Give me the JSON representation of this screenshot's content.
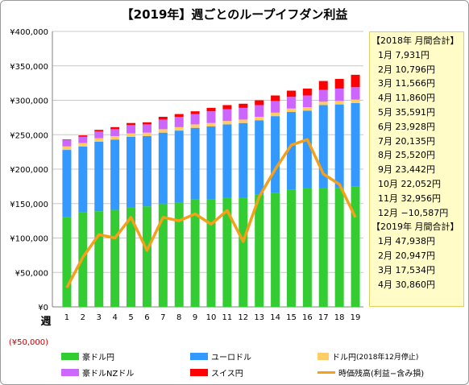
{
  "title": "【2019年】週ごとのループイフダン利益",
  "colors": {
    "aud_jpy": "#33cc33",
    "eur_usd": "#3399ff",
    "usd_jpy": "#ffcc66",
    "aud_nzd": "#cc66ff",
    "chf_jpy": "#ff0000",
    "mark_to_market": "#f5a019"
  },
  "summary": {
    "header_2018": "【2018年 月間合計】",
    "rows_2018": [
      "1月 7,931円",
      "2月 10,796円",
      "3月 11,566円",
      "4月 11,860円",
      "5月 35,591円",
      "6月 23,928円",
      "7月 20,135円",
      "8月 25,520円",
      "9月 23,442円",
      "10月 22,052円",
      "11月 32,956円",
      "12月 −10,587円"
    ],
    "header_2019": "【2019年 月間合計】",
    "rows_2019": [
      "1月 47,938円",
      "2月 20,947円",
      "3月 17,534円",
      "4月 30,860円"
    ]
  },
  "legend": {
    "aud_jpy": "豪ドル円",
    "eur_usd": "ユーロドル",
    "usd_jpy": "ドル円",
    "usd_jpy_note": "(2018年12月停止)",
    "aud_nzd": "豪ドルNZドル",
    "chf_jpy": "スイス円",
    "mark_to_market": "時価残高(利益−含み損)"
  },
  "chart_data": {
    "type": "bar",
    "stacked": true,
    "title": "【2019年】週ごとのループイフダン利益",
    "xlabel": "週",
    "ylabel": "",
    "ylim": [
      -50000,
      400000
    ],
    "yticks": [
      -50000,
      0,
      50000,
      100000,
      150000,
      200000,
      250000,
      300000,
      350000,
      400000
    ],
    "ytick_labels": [
      "(¥50,000)",
      "¥0",
      "¥50,000",
      "¥100,000",
      "¥150,000",
      "¥200,000",
      "¥250,000",
      "¥300,000",
      "¥350,000",
      "¥400,000"
    ],
    "grid": true,
    "categories": [
      "1",
      "2",
      "3",
      "4",
      "5",
      "6",
      "7",
      "8",
      "9",
      "10",
      "11",
      "12",
      "13",
      "14",
      "15",
      "16",
      "17",
      "18",
      "19"
    ],
    "series": [
      {
        "name": "豪ドル円",
        "values": [
          130000,
          137000,
          139000,
          141000,
          145000,
          146000,
          150000,
          152000,
          156000,
          156000,
          158000,
          158000,
          163000,
          166000,
          170000,
          172000,
          172000,
          173000,
          175000
        ]
      },
      {
        "name": "ユーロドル",
        "values": [
          98000,
          96000,
          101000,
          102000,
          102000,
          102000,
          103000,
          104000,
          104000,
          106000,
          107000,
          109000,
          108000,
          111000,
          113000,
          113000,
          121000,
          121000,
          121000
        ]
      },
      {
        "name": "ドル円",
        "values": [
          5000,
          5000,
          5000,
          5000,
          5000,
          5000,
          5000,
          5000,
          5000,
          5000,
          5000,
          5000,
          5000,
          5000,
          5000,
          5000,
          5000,
          5000,
          5000
        ]
      },
      {
        "name": "豪ドルNZドル",
        "values": [
          9000,
          9000,
          10000,
          10000,
          12000,
          12000,
          14000,
          15000,
          15000,
          17000,
          17000,
          17000,
          17000,
          17000,
          17000,
          17000,
          17000,
          18000,
          18000
        ]
      },
      {
        "name": "スイス円",
        "values": [
          1000,
          2000,
          2000,
          3000,
          3000,
          3000,
          4000,
          4000,
          4000,
          5000,
          6000,
          6000,
          7000,
          8000,
          9000,
          10000,
          13000,
          14000,
          18000
        ]
      }
    ],
    "line": {
      "name": "時価残高(利益−含み損)",
      "values": [
        28000,
        72000,
        105000,
        100000,
        130000,
        82000,
        130000,
        125000,
        135000,
        120000,
        140000,
        95000,
        160000,
        200000,
        235000,
        243000,
        193000,
        178000,
        130000
      ]
    },
    "legend_position": "bottom"
  }
}
